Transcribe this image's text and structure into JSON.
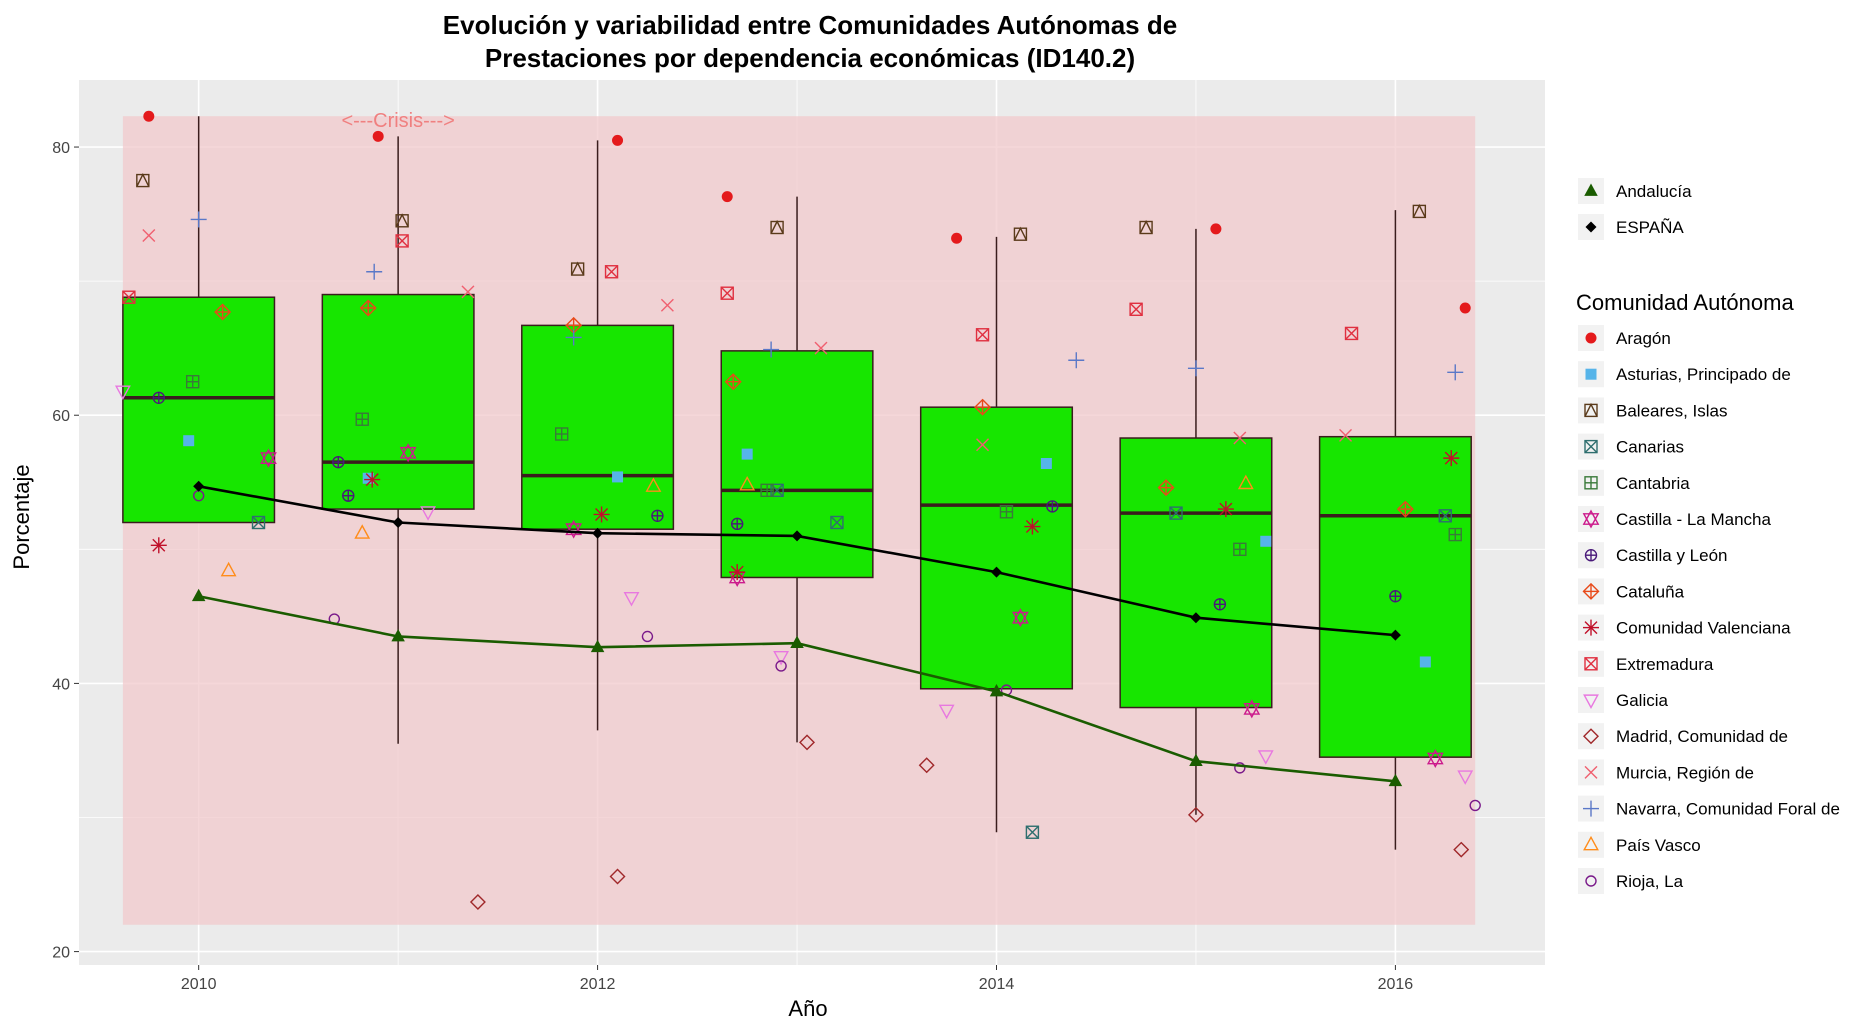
{
  "chart_data": {
    "type": "box",
    "title_lines": [
      "Evolución y variabilidad entre Comunidades Autónomas de",
      "Prestaciones por dependencia económicas (ID140.2)"
    ],
    "xlabel": "Año",
    "ylabel": "Porcentaje",
    "xlim": [
      2009.4,
      2016.75
    ],
    "ylim": [
      19,
      85
    ],
    "x_ticks": [
      2010,
      2012,
      2014,
      2016
    ],
    "y_ticks": [
      20,
      40,
      60,
      80
    ],
    "colors": {
      "panel": "#ebebeb",
      "crisis_band": "#f2c9cc",
      "box_fill": "#17e600",
      "box_line": "#3a1d1d",
      "spain": "#000000",
      "andalucia": "#1a5c00",
      "annotation": "#f08080"
    },
    "crisis": {
      "label": "<---Crisis--->",
      "x": 2011,
      "y": 82,
      "band_x": [
        2009.62,
        2016.4
      ],
      "band_y": [
        22,
        82.3
      ]
    },
    "boxes": [
      {
        "x": 2010,
        "q1": 52.0,
        "median": 61.3,
        "q3": 68.8,
        "lower": 52.0,
        "upper": 82.3
      },
      {
        "x": 2011,
        "q1": 53.0,
        "median": 56.5,
        "q3": 69.0,
        "lower": 35.5,
        "upper": 80.8
      },
      {
        "x": 2012,
        "q1": 51.5,
        "median": 55.5,
        "q3": 66.7,
        "lower": 36.5,
        "upper": 80.5
      },
      {
        "x": 2013,
        "q1": 47.9,
        "median": 54.4,
        "q3": 64.8,
        "lower": 35.6,
        "upper": 76.3
      },
      {
        "x": 2014,
        "q1": 39.6,
        "median": 53.3,
        "q3": 60.6,
        "lower": 28.9,
        "upper": 73.3
      },
      {
        "x": 2015,
        "q1": 38.2,
        "median": 52.7,
        "q3": 58.3,
        "lower": 30.2,
        "upper": 73.9
      },
      {
        "x": 2016,
        "q1": 34.5,
        "median": 52.5,
        "q3": 58.4,
        "lower": 27.6,
        "upper": 75.3
      }
    ],
    "series": [
      {
        "name": "Andalucía",
        "shape": "triangle-filled",
        "color": "#1a5c00",
        "x": [
          2010,
          2011,
          2012,
          2013,
          2014,
          2015,
          2016
        ],
        "y": [
          46.5,
          43.5,
          42.7,
          43.0,
          39.4,
          34.2,
          32.7
        ]
      },
      {
        "name": "ESPAÑA",
        "shape": "diamond-filled",
        "color": "#000000",
        "x": [
          2010,
          2011,
          2012,
          2013,
          2014,
          2015,
          2016
        ],
        "y": [
          54.7,
          52.0,
          51.2,
          51.0,
          48.3,
          44.9,
          43.6
        ]
      }
    ],
    "legend_series": [
      {
        "label": "Andalucía",
        "shape": "triangle-filled",
        "color": "#1a5c00"
      },
      {
        "label": "ESPAÑA",
        "shape": "diamond-filled",
        "color": "#000000"
      }
    ],
    "legend_title": "Comunidad Autónoma",
    "communities": [
      {
        "label": "Aragón",
        "shape": "circle-filled",
        "color": "#e41a1c"
      },
      {
        "label": "Asturias, Principado de",
        "shape": "square-filled",
        "color": "#56b4e9"
      },
      {
        "label": "Baleares, Islas",
        "shape": "square-triangle",
        "color": "#5a3a1a"
      },
      {
        "label": "Canarias",
        "shape": "square-x",
        "color": "#2f6f6f"
      },
      {
        "label": "Cantabria",
        "shape": "square-plus",
        "color": "#3a7a3a"
      },
      {
        "label": "Castilla - La Mancha",
        "shape": "star-david",
        "color": "#cc1a8c"
      },
      {
        "label": "Castilla y León",
        "shape": "circle-plus",
        "color": "#4a1a7a"
      },
      {
        "label": "Cataluña",
        "shape": "diamond-plus",
        "color": "#e84a1a"
      },
      {
        "label": "Comunidad Valenciana",
        "shape": "asterisk",
        "color": "#c0102a"
      },
      {
        "label": "Extremadura",
        "shape": "square-x",
        "color": "#e03040"
      },
      {
        "label": "Galicia",
        "shape": "triangle-down",
        "color": "#e878e0"
      },
      {
        "label": "Madrid, Comunidad de",
        "shape": "diamond",
        "color": "#a0282a"
      },
      {
        "label": "Murcia, Región de",
        "shape": "x",
        "color": "#f06070"
      },
      {
        "label": "Navarra, Comunidad Foral de",
        "shape": "plus",
        "color": "#5a78c8"
      },
      {
        "label": "País Vasco",
        "shape": "triangle",
        "color": "#ff8c1a"
      },
      {
        "label": "Rioja, La",
        "shape": "circle",
        "color": "#7a1a8a"
      }
    ],
    "points": [
      {
        "community": 0,
        "x": 2009.75,
        "y": 82.3
      },
      {
        "community": 0,
        "x": 2010.9,
        "y": 80.8
      },
      {
        "community": 0,
        "x": 2012.1,
        "y": 80.5
      },
      {
        "community": 0,
        "x": 2012.65,
        "y": 76.3
      },
      {
        "community": 0,
        "x": 2013.8,
        "y": 73.2
      },
      {
        "community": 0,
        "x": 2015.1,
        "y": 73.9
      },
      {
        "community": 0,
        "x": 2016.35,
        "y": 68.0
      },
      {
        "community": 1,
        "x": 2009.95,
        "y": 58.1
      },
      {
        "community": 1,
        "x": 2010.85,
        "y": 55.3
      },
      {
        "community": 1,
        "x": 2012.1,
        "y": 55.4
      },
      {
        "community": 1,
        "x": 2012.75,
        "y": 57.1
      },
      {
        "community": 1,
        "x": 2014.25,
        "y": 56.4
      },
      {
        "community": 1,
        "x": 2015.35,
        "y": 50.6
      },
      {
        "community": 1,
        "x": 2016.15,
        "y": 41.6
      },
      {
        "community": 2,
        "x": 2009.72,
        "y": 77.5
      },
      {
        "community": 2,
        "x": 2011.02,
        "y": 74.5
      },
      {
        "community": 2,
        "x": 2011.9,
        "y": 70.9
      },
      {
        "community": 2,
        "x": 2012.9,
        "y": 74.0
      },
      {
        "community": 2,
        "x": 2014.12,
        "y": 73.5
      },
      {
        "community": 2,
        "x": 2014.75,
        "y": 74.0
      },
      {
        "community": 2,
        "x": 2016.12,
        "y": 75.2
      },
      {
        "community": 3,
        "x": 2010.3,
        "y": 52.0
      },
      {
        "community": 3,
        "x": 2012.9,
        "y": 54.4
      },
      {
        "community": 3,
        "x": 2013.2,
        "y": 52.0
      },
      {
        "community": 3,
        "x": 2014.18,
        "y": 28.9
      },
      {
        "community": 3,
        "x": 2014.9,
        "y": 52.7
      },
      {
        "community": 3,
        "x": 2016.25,
        "y": 52.5
      },
      {
        "community": 4,
        "x": 2009.97,
        "y": 62.5
      },
      {
        "community": 4,
        "x": 2010.82,
        "y": 59.7
      },
      {
        "community": 4,
        "x": 2011.82,
        "y": 58.6
      },
      {
        "community": 4,
        "x": 2012.85,
        "y": 54.4
      },
      {
        "community": 4,
        "x": 2014.05,
        "y": 52.8
      },
      {
        "community": 4,
        "x": 2015.22,
        "y": 50.0
      },
      {
        "community": 4,
        "x": 2016.3,
        "y": 51.1
      },
      {
        "community": 5,
        "x": 2010.35,
        "y": 56.8
      },
      {
        "community": 5,
        "x": 2011.05,
        "y": 57.2
      },
      {
        "community": 5,
        "x": 2011.88,
        "y": 51.5
      },
      {
        "community": 5,
        "x": 2012.7,
        "y": 47.9
      },
      {
        "community": 5,
        "x": 2014.12,
        "y": 44.9
      },
      {
        "community": 5,
        "x": 2015.28,
        "y": 38.1
      },
      {
        "community": 5,
        "x": 2016.2,
        "y": 34.4
      },
      {
        "community": 6,
        "x": 2009.8,
        "y": 61.3
      },
      {
        "community": 6,
        "x": 2010.7,
        "y": 56.5
      },
      {
        "community": 6,
        "x": 2010.75,
        "y": 54.0
      },
      {
        "community": 6,
        "x": 2012.3,
        "y": 52.5
      },
      {
        "community": 6,
        "x": 2012.7,
        "y": 51.9
      },
      {
        "community": 6,
        "x": 2014.28,
        "y": 53.2
      },
      {
        "community": 6,
        "x": 2015.12,
        "y": 45.9
      },
      {
        "community": 6,
        "x": 2016.0,
        "y": 46.5
      },
      {
        "community": 7,
        "x": 2010.12,
        "y": 67.7
      },
      {
        "community": 7,
        "x": 2010.85,
        "y": 68.0
      },
      {
        "community": 7,
        "x": 2011.88,
        "y": 66.7
      },
      {
        "community": 7,
        "x": 2012.68,
        "y": 62.5
      },
      {
        "community": 7,
        "x": 2013.93,
        "y": 60.6
      },
      {
        "community": 7,
        "x": 2014.85,
        "y": 54.6
      },
      {
        "community": 7,
        "x": 2016.05,
        "y": 53.0
      },
      {
        "community": 8,
        "x": 2009.8,
        "y": 50.3
      },
      {
        "community": 8,
        "x": 2010.87,
        "y": 55.2
      },
      {
        "community": 8,
        "x": 2012.02,
        "y": 52.6
      },
      {
        "community": 8,
        "x": 2012.7,
        "y": 48.3
      },
      {
        "community": 8,
        "x": 2014.18,
        "y": 51.7
      },
      {
        "community": 8,
        "x": 2015.15,
        "y": 53.0
      },
      {
        "community": 8,
        "x": 2016.28,
        "y": 56.8
      },
      {
        "community": 9,
        "x": 2009.65,
        "y": 68.8
      },
      {
        "community": 9,
        "x": 2011.02,
        "y": 73.0
      },
      {
        "community": 9,
        "x": 2012.07,
        "y": 70.7
      },
      {
        "community": 9,
        "x": 2012.65,
        "y": 69.1
      },
      {
        "community": 9,
        "x": 2013.93,
        "y": 66.0
      },
      {
        "community": 9,
        "x": 2014.7,
        "y": 67.9
      },
      {
        "community": 9,
        "x": 2015.78,
        "y": 66.1
      },
      {
        "community": 10,
        "x": 2009.62,
        "y": 61.8
      },
      {
        "community": 10,
        "x": 2011.15,
        "y": 52.8
      },
      {
        "community": 10,
        "x": 2012.17,
        "y": 46.4
      },
      {
        "community": 10,
        "x": 2012.92,
        "y": 42.0
      },
      {
        "community": 10,
        "x": 2013.75,
        "y": 38.0
      },
      {
        "community": 10,
        "x": 2015.35,
        "y": 34.6
      },
      {
        "community": 10,
        "x": 2016.35,
        "y": 33.1
      },
      {
        "community": 11,
        "x": 2011.4,
        "y": 23.7
      },
      {
        "community": 11,
        "x": 2012.1,
        "y": 25.6
      },
      {
        "community": 11,
        "x": 2013.05,
        "y": 35.6
      },
      {
        "community": 11,
        "x": 2013.65,
        "y": 33.9
      },
      {
        "community": 11,
        "x": 2015.0,
        "y": 30.2
      },
      {
        "community": 11,
        "x": 2016.33,
        "y": 27.6
      },
      {
        "community": 12,
        "x": 2009.75,
        "y": 73.4
      },
      {
        "community": 12,
        "x": 2011.35,
        "y": 69.2
      },
      {
        "community": 12,
        "x": 2012.35,
        "y": 68.2
      },
      {
        "community": 12,
        "x": 2013.12,
        "y": 65.0
      },
      {
        "community": 12,
        "x": 2013.93,
        "y": 57.8
      },
      {
        "community": 12,
        "x": 2015.22,
        "y": 58.3
      },
      {
        "community": 12,
        "x": 2015.75,
        "y": 58.5
      },
      {
        "community": 13,
        "x": 2010.0,
        "y": 74.6
      },
      {
        "community": 13,
        "x": 2010.88,
        "y": 70.7
      },
      {
        "community": 13,
        "x": 2011.88,
        "y": 65.8
      },
      {
        "community": 13,
        "x": 2012.87,
        "y": 64.9
      },
      {
        "community": 13,
        "x": 2014.4,
        "y": 64.1
      },
      {
        "community": 13,
        "x": 2015.0,
        "y": 63.5
      },
      {
        "community": 13,
        "x": 2016.3,
        "y": 63.2
      },
      {
        "community": 14,
        "x": 2010.15,
        "y": 48.4
      },
      {
        "community": 14,
        "x": 2010.82,
        "y": 51.2
      },
      {
        "community": 14,
        "x": 2012.28,
        "y": 54.7
      },
      {
        "community": 14,
        "x": 2012.75,
        "y": 54.8
      },
      {
        "community": 14,
        "x": 2015.25,
        "y": 54.9
      },
      {
        "community": 15,
        "x": 2010.0,
        "y": 54.0
      },
      {
        "community": 15,
        "x": 2010.68,
        "y": 44.8
      },
      {
        "community": 15,
        "x": 2012.25,
        "y": 43.5
      },
      {
        "community": 15,
        "x": 2012.92,
        "y": 41.3
      },
      {
        "community": 15,
        "x": 2014.05,
        "y": 39.5
      },
      {
        "community": 15,
        "x": 2015.22,
        "y": 33.7
      },
      {
        "community": 15,
        "x": 2016.4,
        "y": 30.9
      }
    ]
  }
}
